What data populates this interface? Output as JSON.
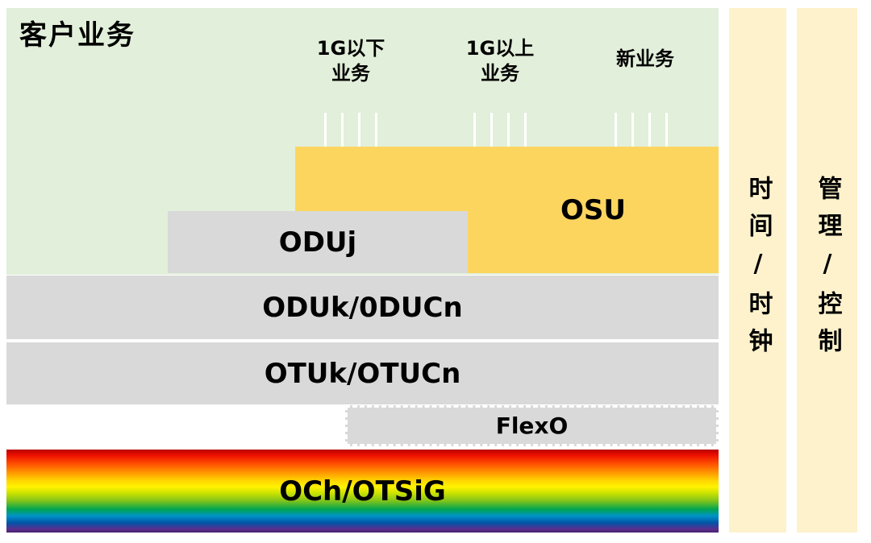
{
  "client_area": {
    "title": "客户业务",
    "services": [
      {
        "label": "1G以下\n业务"
      },
      {
        "label": "1G以上\n业务"
      },
      {
        "label": "新业务"
      }
    ]
  },
  "layers": {
    "osu_label": "OSU",
    "oduj_label": "ODUj",
    "oduk_label": "ODUk/0DUCn",
    "otuk_label": "OTUk/OTUCn",
    "flexo_label": "FlexO",
    "och_label": "OCh/OTSiG"
  },
  "sidebars": {
    "time_clock": "时间/时钟",
    "mgmt_control": "管理/控制"
  },
  "colors": {
    "client_area_green": "#e2efda",
    "osu_yellow": "#fcd55f",
    "layer_gray": "#d9d9d9",
    "sidebar_cream": "#fdf2cc",
    "tick_white": "#ffffff",
    "text_black": "#000000",
    "och_rainbow": [
      "#b80000",
      "#ff5500",
      "#ffd800",
      "#7fc31c",
      "#00a550",
      "#0057a8",
      "#5b2d8e"
    ]
  }
}
